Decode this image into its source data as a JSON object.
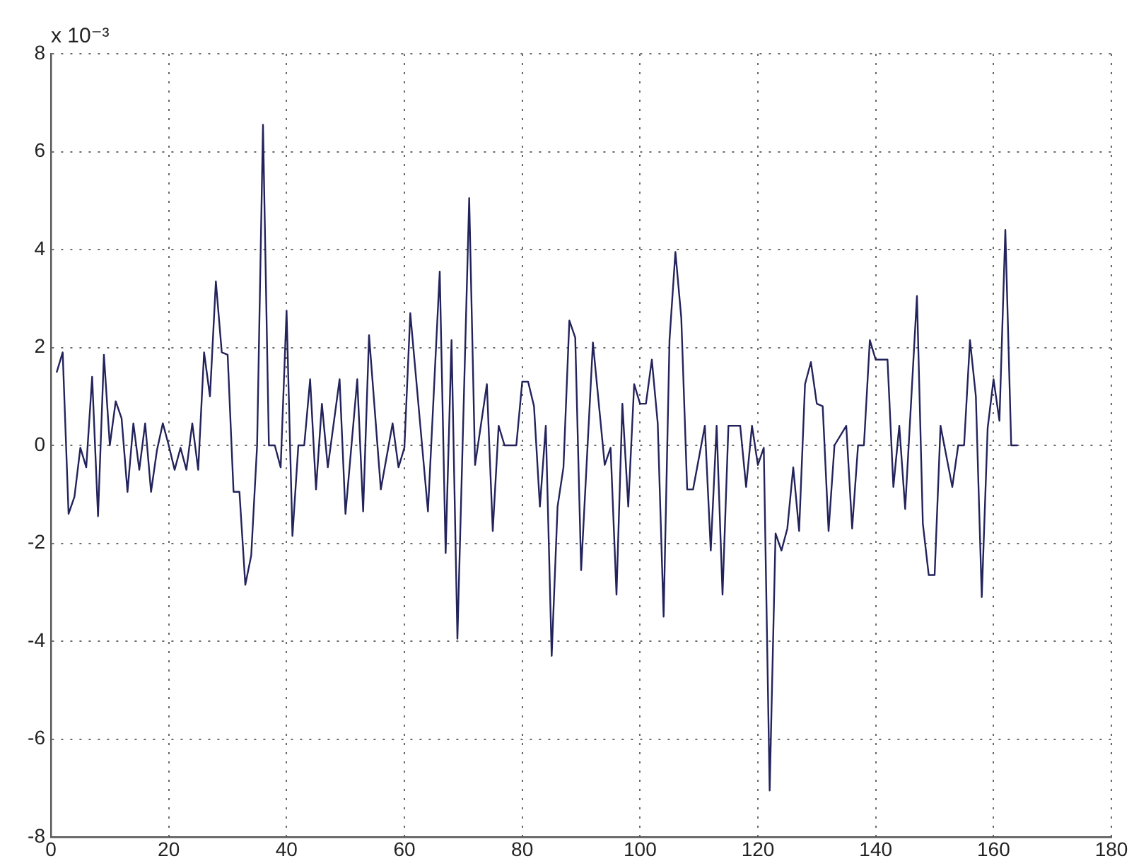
{
  "chart_data": {
    "type": "line",
    "color": "#23235c",
    "x": [
      1,
      2,
      3,
      4,
      5,
      6,
      7,
      8,
      9,
      10,
      11,
      12,
      13,
      14,
      15,
      16,
      17,
      18,
      19,
      20,
      21,
      22,
      23,
      24,
      25,
      26,
      27,
      28,
      29,
      30,
      31,
      32,
      33,
      34,
      35,
      36,
      37,
      38,
      39,
      40,
      41,
      42,
      43,
      44,
      45,
      46,
      47,
      49,
      50,
      52,
      53,
      54,
      56,
      58,
      59,
      60,
      61,
      64,
      66,
      67,
      68,
      69,
      71,
      72,
      74,
      75,
      76,
      77,
      79,
      80,
      81,
      82,
      83,
      84,
      85,
      86,
      87,
      88,
      89,
      90,
      92,
      94,
      95,
      96,
      97,
      98,
      99,
      100,
      101,
      102,
      103,
      104,
      105,
      106,
      107,
      108,
      109,
      111,
      112,
      113,
      114,
      115,
      117,
      118,
      119,
      120,
      121,
      122,
      123,
      124,
      125,
      126,
      127,
      128,
      129,
      130,
      131,
      132,
      133,
      135,
      136,
      137,
      138,
      139,
      140,
      142,
      143,
      144,
      145,
      147,
      148,
      149,
      150,
      151,
      153,
      154,
      155,
      156,
      157,
      158,
      159,
      160,
      161,
      162,
      163,
      164
    ],
    "values": [
      1.5,
      1.9,
      -1.4,
      -1.05,
      -0.05,
      -0.45,
      1.4,
      -1.45,
      1.85,
      0,
      0.9,
      0.55,
      -0.95,
      0.45,
      -0.5,
      0.45,
      -0.95,
      -0.1,
      0.45,
      0,
      -0.5,
      -0.05,
      -0.5,
      0.45,
      -0.5,
      1.9,
      1.0,
      3.35,
      1.9,
      1.85,
      -0.95,
      -0.95,
      -2.85,
      -2.25,
      0,
      6.55,
      0,
      0,
      -0.45,
      2.75,
      -1.85,
      0,
      0,
      1.35,
      -0.9,
      0.85,
      -0.45,
      1.35,
      -1.4,
      1.35,
      -1.35,
      2.25,
      -0.9,
      0.45,
      -0.45,
      -0.05,
      2.7,
      -1.35,
      3.55,
      -2.2,
      2.15,
      -3.95,
      5.05,
      -0.4,
      1.25,
      -1.75,
      0.4,
      0,
      0,
      1.3,
      1.3,
      0.8,
      -1.25,
      0.4,
      -4.3,
      -1.25,
      -0.45,
      2.55,
      2.2,
      -2.55,
      2.1,
      -0.4,
      -0.05,
      -3.05,
      0.85,
      -1.25,
      1.25,
      0.85,
      0.85,
      1.75,
      0.45,
      -3.5,
      2.15,
      3.95,
      2.6,
      -0.9,
      -0.9,
      0.4,
      -2.15,
      0.4,
      -3.05,
      0.4,
      0.4,
      -0.85,
      0.4,
      -0.4,
      -0.05,
      -7.05,
      -1.8,
      -2.15,
      -1.7,
      -0.45,
      -1.75,
      1.25,
      1.7,
      0.85,
      0.8,
      -1.75,
      0,
      0.4,
      -1.7,
      0,
      0,
      2.15,
      1.75,
      1.75,
      -0.85,
      0.4,
      -1.3,
      3.05,
      -1.6,
      -2.65,
      -2.65,
      0.4,
      -0.85,
      0,
      0,
      2.15,
      1.0,
      -3.1,
      0.35,
      1.35,
      0.5,
      4.4,
      0,
      0
    ],
    "xlim": [
      0,
      180
    ],
    "ylim": [
      -8,
      8
    ],
    "xticks": [
      0,
      20,
      40,
      60,
      80,
      100,
      120,
      140,
      160,
      180
    ],
    "yticks": [
      -8,
      -6,
      -4,
      -2,
      0,
      2,
      4,
      6,
      8
    ],
    "grid": true,
    "annotations": [
      "x 10⁻³"
    ]
  }
}
